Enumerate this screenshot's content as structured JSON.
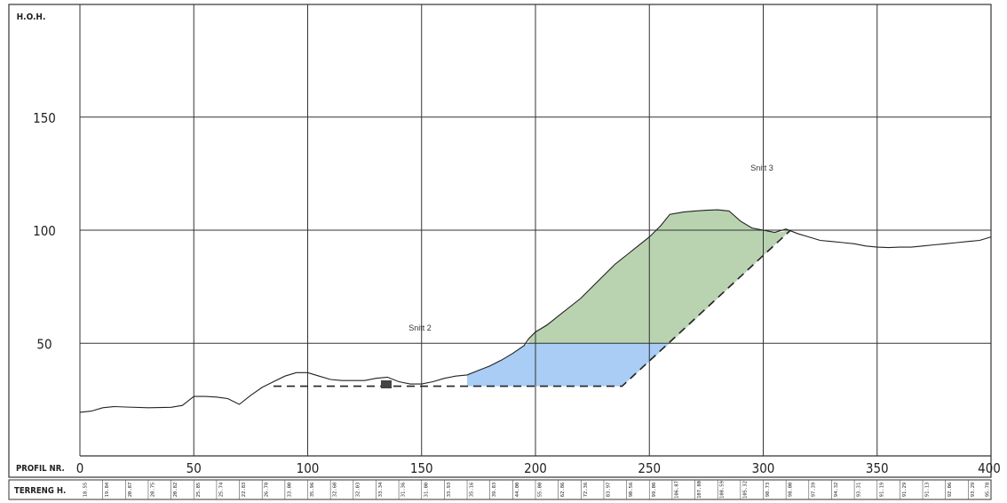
{
  "header": {
    "y_axis_label": "H.O.H.",
    "profil_label": "PROFIL NR.",
    "terreng_label": "TERRENG H."
  },
  "annotations": {
    "snitt2": "Snitt 2",
    "snitt3": "Snitt 3"
  },
  "colors": {
    "fill_upper": "#b9d3b0",
    "fill_lower": "#a9cdf5",
    "grid": "#333333",
    "terrain": "#222222"
  },
  "chart_data": {
    "type": "cross-section profile",
    "x_ticks": [
      0,
      50,
      100,
      150,
      200,
      250,
      300,
      350,
      400
    ],
    "y_ticks": [
      50,
      100,
      150
    ],
    "xlim": [
      0,
      400
    ],
    "ylim": [
      0,
      200
    ],
    "terrain": [
      [
        0,
        19.5
      ],
      [
        5,
        20
      ],
      [
        10,
        21.5
      ],
      [
        15,
        22
      ],
      [
        20,
        21.8
      ],
      [
        30,
        21.5
      ],
      [
        40,
        21.7
      ],
      [
        45,
        22.5
      ],
      [
        50,
        26.5
      ],
      [
        55,
        26.5
      ],
      [
        60,
        26.2
      ],
      [
        65,
        25.5
      ],
      [
        70,
        23
      ],
      [
        75,
        27
      ],
      [
        80,
        30.5
      ],
      [
        85,
        33
      ],
      [
        90,
        35.5
      ],
      [
        95,
        37
      ],
      [
        100,
        37
      ],
      [
        105,
        35.5
      ],
      [
        110,
        34
      ],
      [
        115,
        33.5
      ],
      [
        120,
        33.5
      ],
      [
        125,
        33.5
      ],
      [
        130,
        34.5
      ],
      [
        135,
        35
      ],
      [
        140,
        33
      ],
      [
        145,
        32
      ],
      [
        150,
        32
      ],
      [
        155,
        33
      ],
      [
        160,
        34.5
      ],
      [
        165,
        35.5
      ],
      [
        170,
        36
      ],
      [
        175,
        38
      ],
      [
        180,
        40
      ],
      [
        185,
        42.5
      ],
      [
        190,
        45.5
      ],
      [
        195,
        49
      ],
      [
        197,
        52
      ],
      [
        200,
        55
      ],
      [
        205,
        58
      ],
      [
        210,
        62
      ],
      [
        215,
        66
      ],
      [
        220,
        70
      ],
      [
        225,
        75
      ],
      [
        230,
        80
      ],
      [
        235,
        85
      ],
      [
        240,
        89
      ],
      [
        245,
        93
      ],
      [
        250,
        97
      ],
      [
        255,
        102
      ],
      [
        259,
        107
      ],
      [
        265,
        108
      ],
      [
        270,
        108.5
      ],
      [
        275,
        108.8
      ],
      [
        280,
        109
      ],
      [
        285,
        108.5
      ],
      [
        290,
        104
      ],
      [
        295,
        101
      ],
      [
        300,
        100
      ],
      [
        305,
        99
      ],
      [
        310,
        100.5
      ],
      [
        315,
        98.5
      ],
      [
        320,
        97
      ],
      [
        325,
        95.5
      ],
      [
        330,
        95
      ],
      [
        335,
        94.5
      ],
      [
        340,
        94
      ],
      [
        345,
        93
      ],
      [
        350,
        92.5
      ],
      [
        355,
        92.3
      ],
      [
        360,
        92.5
      ],
      [
        365,
        92.5
      ],
      [
        370,
        93
      ],
      [
        375,
        93.5
      ],
      [
        380,
        94
      ],
      [
        385,
        94.5
      ],
      [
        390,
        95
      ],
      [
        395,
        95.5
      ],
      [
        400,
        97
      ]
    ],
    "design_line": [
      [
        85,
        31
      ],
      [
        238,
        31
      ],
      [
        312,
        100
      ]
    ],
    "fill_upper_polygon": [
      [
        197,
        50
      ],
      [
        197,
        52
      ],
      [
        200,
        55
      ],
      [
        210,
        62
      ],
      [
        220,
        70
      ],
      [
        230,
        80
      ],
      [
        240,
        89
      ],
      [
        250,
        97
      ],
      [
        255,
        102
      ],
      [
        259,
        107
      ],
      [
        270,
        108.5
      ],
      [
        280,
        109
      ],
      [
        285,
        108.5
      ],
      [
        290,
        104
      ],
      [
        295,
        101
      ],
      [
        307,
        99
      ],
      [
        312,
        100
      ],
      [
        259,
        50
      ]
    ],
    "fill_lower_polygon": [
      [
        170,
        36
      ],
      [
        175,
        38
      ],
      [
        180,
        40
      ],
      [
        185,
        42.5
      ],
      [
        190,
        45.5
      ],
      [
        195,
        49
      ],
      [
        197,
        50
      ],
      [
        259,
        50
      ],
      [
        238,
        31
      ],
      [
        170,
        31
      ]
    ],
    "terreng_values": [
      "18.55",
      "19.84",
      "20.87",
      "20.75",
      "20.82",
      "25.85",
      "25.74",
      "22.83",
      "26.78",
      "33.00",
      "35.96",
      "32.60",
      "32.03",
      "33.34",
      "31.36",
      "31.00",
      "33.93",
      "35.16",
      "39.83",
      "44.00",
      "55.00",
      "62.86",
      "72.36",
      "83.97",
      "90.56",
      "99.08",
      "106.87",
      "107.80",
      "108.59",
      "105.32",
      "98.73",
      "98.00",
      "97.39",
      "94.32",
      "93.31",
      "91.19",
      "91.29",
      "91.13",
      "92.06",
      "93.29",
      "95.78"
    ]
  }
}
